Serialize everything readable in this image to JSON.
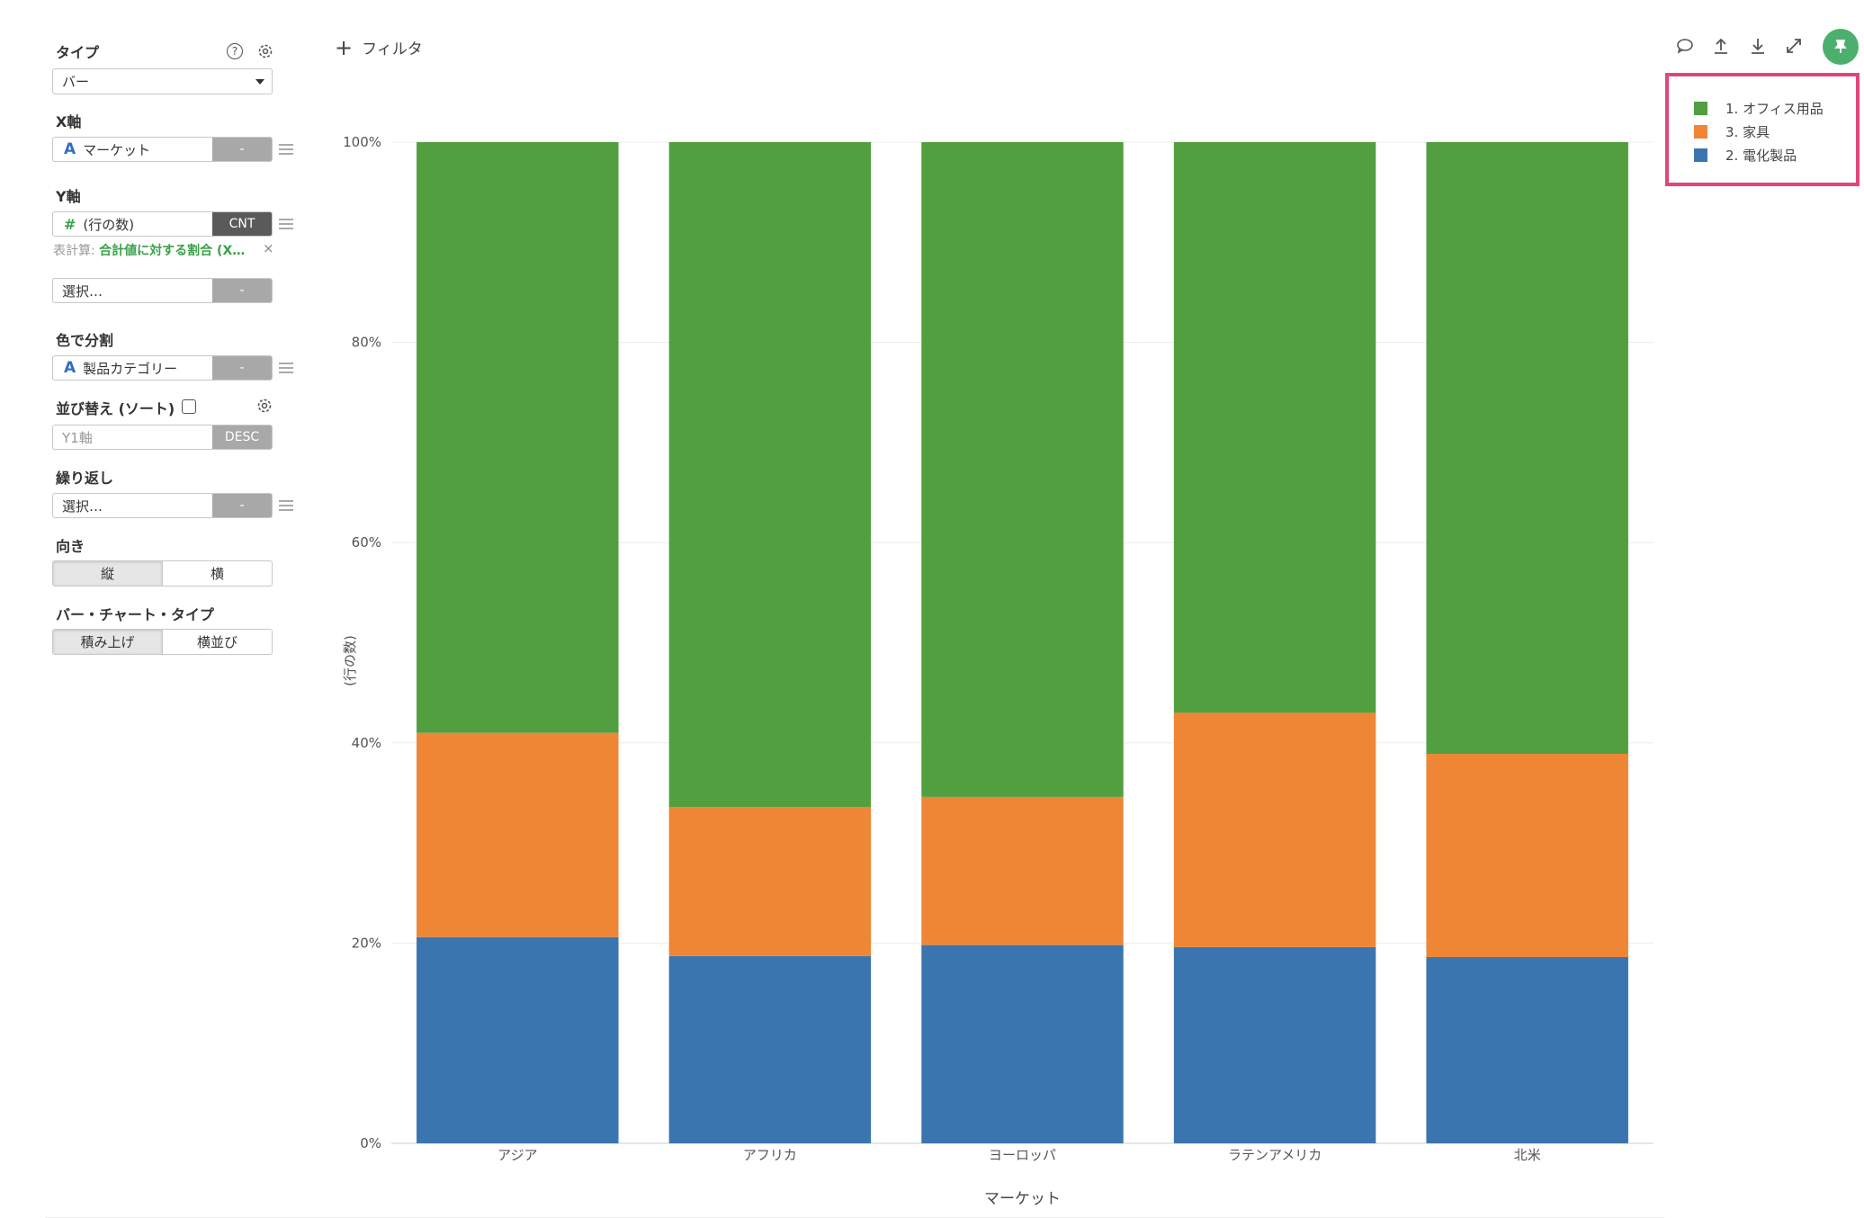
{
  "panel": {
    "type_label": "タイプ",
    "type_value": "バー",
    "x_axis_label": "X軸",
    "x_field": "マーケット",
    "x_agg": "-",
    "y_axis_label": "Y軸",
    "y_field": "(行の数)",
    "y_agg": "CNT",
    "calc_prefix": "表計算:",
    "calc_value": "合計値に対する割合 (X…",
    "y2_placeholder": "選択…",
    "y2_agg": "-",
    "color_label": "色で分割",
    "color_field": "製品カテゴリー",
    "color_agg": "-",
    "sort_label": "並び替え (ソート)",
    "sort_field": "Y1軸",
    "sort_order": "DESC",
    "repeat_label": "繰り返し",
    "repeat_placeholder": "選択…",
    "repeat_agg": "-",
    "orientation_label": "向き",
    "orientation_options": [
      "縦",
      "横"
    ],
    "bar_type_label": "バー・チャート・タイプ",
    "bar_type_options": [
      "積み上げ",
      "横並び"
    ],
    "help_glyph": "?"
  },
  "toolbar": {
    "filter_plus": "+",
    "filter_label": "フィルタ",
    "icons": [
      "comment-icon",
      "upload-icon",
      "download-icon",
      "expand-icon",
      "pin-icon"
    ]
  },
  "legend": {
    "items": [
      {
        "label": "1. オフィス用品",
        "color": "#529f3f"
      },
      {
        "label": "3. 家具",
        "color": "#ef8636"
      },
      {
        "label": "2. 電化製品",
        "color": "#3b75af"
      }
    ]
  },
  "chart_data": {
    "type": "bar",
    "stacked": true,
    "categories": [
      "アジア",
      "アフリカ",
      "ヨーロッパ",
      "ラテンアメリカ",
      "北米"
    ],
    "series": [
      {
        "name": "2. 電化製品",
        "color": "#3b75af",
        "values": [
          20.6,
          18.7,
          19.8,
          19.6,
          18.6
        ]
      },
      {
        "name": "3. 家具",
        "color": "#ef8636",
        "values": [
          20.4,
          14.9,
          14.8,
          23.4,
          20.3
        ]
      },
      {
        "name": "1. オフィス用品",
        "color": "#529f3f",
        "values": [
          59.0,
          66.4,
          65.4,
          57.0,
          61.1
        ]
      }
    ],
    "xlabel": "マーケット",
    "ylabel": "(行の数)",
    "ylim": [
      0,
      100
    ],
    "yticks": [
      "0%",
      "20%",
      "40%",
      "60%",
      "80%",
      "100%"
    ],
    "grid": true,
    "legend_position": "top-right"
  }
}
